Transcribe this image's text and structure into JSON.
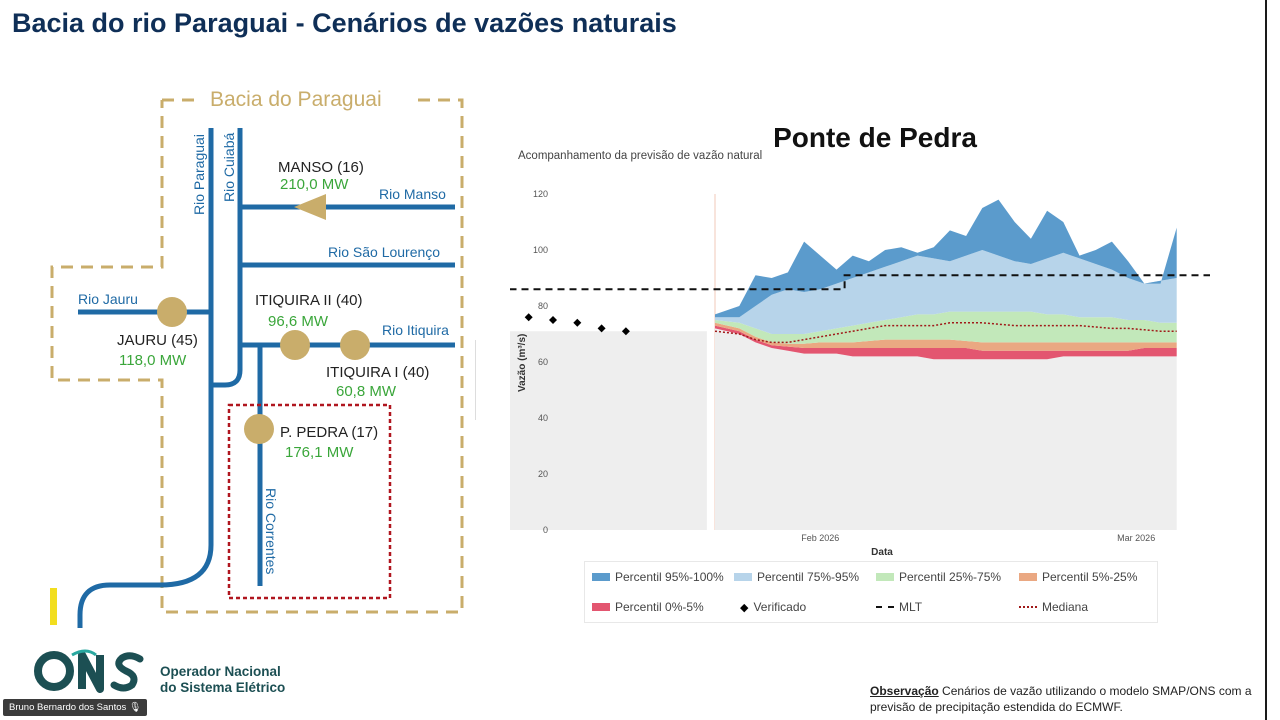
{
  "slide": {
    "title": "Bacia do rio Paraguai - Cenários de vazões naturais"
  },
  "diagram": {
    "basin_label": "Bacia do Paraguai",
    "rivers": {
      "paraguai": "Rio Paraguai",
      "cuiaba": "Rio Cuiabá",
      "manso": "Rio Manso",
      "sao_lourenco": "Rio São Lourenço",
      "jauru": "Rio Jauru",
      "itiquira": "Rio Itiquira",
      "correntes": "Rio Correntes"
    },
    "plants": [
      {
        "name": "MANSO (16)",
        "power": "210,0 MW"
      },
      {
        "name": "JAURU (45)",
        "power": "118,0 MW"
      },
      {
        "name": "ITIQUIRA II (40)",
        "power": "96,6 MW"
      },
      {
        "name": "ITIQUIRA I (40)",
        "power": "60,8 MW"
      },
      {
        "name": "P. PEDRA (17)",
        "power": "176,1 MW"
      }
    ],
    "colors": {
      "river": "#1f6aa5",
      "plant": "#c9ad6b",
      "basin_border": "#c9ad6b",
      "power_text": "#3aa63a",
      "highlight": "#b0161f"
    }
  },
  "chart_data": {
    "type": "area",
    "title": "Ponte de Pedra",
    "subtitle": "Acompanhamento da previsão de vazão natural",
    "xlabel": "Data",
    "ylabel": "Vazão (m³/s)",
    "ylim": [
      0,
      120
    ],
    "yticks": [
      0,
      20,
      40,
      60,
      80,
      100,
      120
    ],
    "xtick_labels": [
      "Feb 2026",
      "Mar 2026"
    ],
    "forecast_days": [
      0,
      3,
      5,
      7,
      9,
      11,
      13,
      15,
      17,
      19,
      21,
      23,
      25,
      27,
      29,
      31,
      33,
      35,
      37,
      39,
      41,
      43,
      45,
      47,
      49,
      51,
      53,
      55,
      57
    ],
    "bands": {
      "p0_p5_low": [
        72,
        70,
        67,
        65,
        64,
        63,
        63,
        63,
        62,
        62,
        62,
        62,
        62,
        61,
        61,
        61,
        61,
        61,
        61,
        61,
        61,
        62,
        62,
        62,
        62,
        62,
        62,
        62,
        62
      ],
      "p5_p25_low": [
        73,
        71,
        68,
        66,
        65.5,
        65,
        65,
        65,
        65,
        65,
        65,
        65,
        65,
        65,
        65,
        65,
        64,
        64,
        64,
        64,
        64,
        64,
        64,
        64,
        64,
        64,
        65,
        65,
        65
      ],
      "p25_p75_low": [
        74,
        72,
        69,
        67,
        66.5,
        66.5,
        67,
        67,
        67,
        67.5,
        68,
        68,
        68,
        68,
        68,
        67.5,
        67,
        67,
        67,
        67,
        67,
        67,
        67,
        67,
        67,
        67,
        67,
        67,
        67
      ],
      "p75_p95_low": [
        75,
        74,
        72,
        70,
        70,
        70,
        71,
        72,
        73,
        74,
        75,
        76,
        77,
        77,
        78,
        78,
        78,
        78,
        78,
        78,
        77,
        77,
        76,
        76,
        76,
        75,
        75,
        74,
        74
      ],
      "p95_low": [
        76,
        76,
        80,
        84,
        86,
        85,
        86,
        88,
        90,
        92,
        94,
        96,
        98,
        97,
        96,
        98,
        100,
        98,
        96,
        95,
        97,
        99,
        97,
        95,
        93,
        90,
        88,
        89,
        90
      ],
      "p95_high": [
        77,
        80,
        91,
        90,
        92,
        103,
        98,
        93,
        98,
        96,
        100,
        101,
        99,
        101,
        107,
        105,
        115,
        118,
        110,
        104,
        114,
        110,
        98,
        100,
        103,
        96,
        88,
        88,
        108
      ]
    },
    "mediana": [
      71,
      70,
      68,
      67,
      67,
      68,
      69,
      70,
      71,
      72,
      73,
      73,
      73,
      73,
      74,
      74,
      74,
      73.5,
      73,
      73,
      73,
      73,
      73,
      72.5,
      72,
      72,
      71.5,
      71,
      71
    ],
    "mlt": {
      "segments": [
        [
          -55,
          86
        ],
        [
          -5,
          86
        ],
        [
          -5,
          86
        ],
        [
          16,
          86
        ],
        [
          16,
          91
        ],
        [
          62,
          91
        ],
        [
          62,
          92
        ],
        [
          70,
          92
        ]
      ]
    },
    "verificado": {
      "days": [
        -50,
        -47,
        -44,
        -41,
        -38,
        -35,
        -32,
        -29,
        -26,
        -23,
        -20,
        -17,
        -14,
        -11
      ],
      "values": [
        67,
        68,
        68.5,
        68,
        67.5,
        68,
        70,
        72,
        74,
        76,
        75,
        74,
        72,
        71
      ]
    },
    "x_ticks_days": [
      13,
      52
    ],
    "legend": [
      {
        "label": "Percentil 95%-100%",
        "color": "#5b9bcc"
      },
      {
        "label": "Percentil 75%-95%",
        "color": "#b7d4ea"
      },
      {
        "label": "Percentil 25%-75%",
        "color": "#c2e8ba"
      },
      {
        "label": "Percentil 5%-25%",
        "color": "#eaa882"
      },
      {
        "label": "Percentil 0%-5%",
        "color": "#e35670"
      },
      {
        "label": "Verificado",
        "color": "#000000"
      },
      {
        "label": "MLT",
        "color": "#111111"
      },
      {
        "label": "Mediana",
        "color": "#a01919"
      }
    ]
  },
  "footer": {
    "org_line1": "Operador Nacional",
    "org_line2": "do Sistema Elétrico",
    "note_label": "Observação",
    "note_text": " Cenários de vazão utilizando o modelo SMAP/ONS com a previsão de precipitação estendida do ECMWF.",
    "user_tag": "Bruno Bernardo dos Santos"
  }
}
